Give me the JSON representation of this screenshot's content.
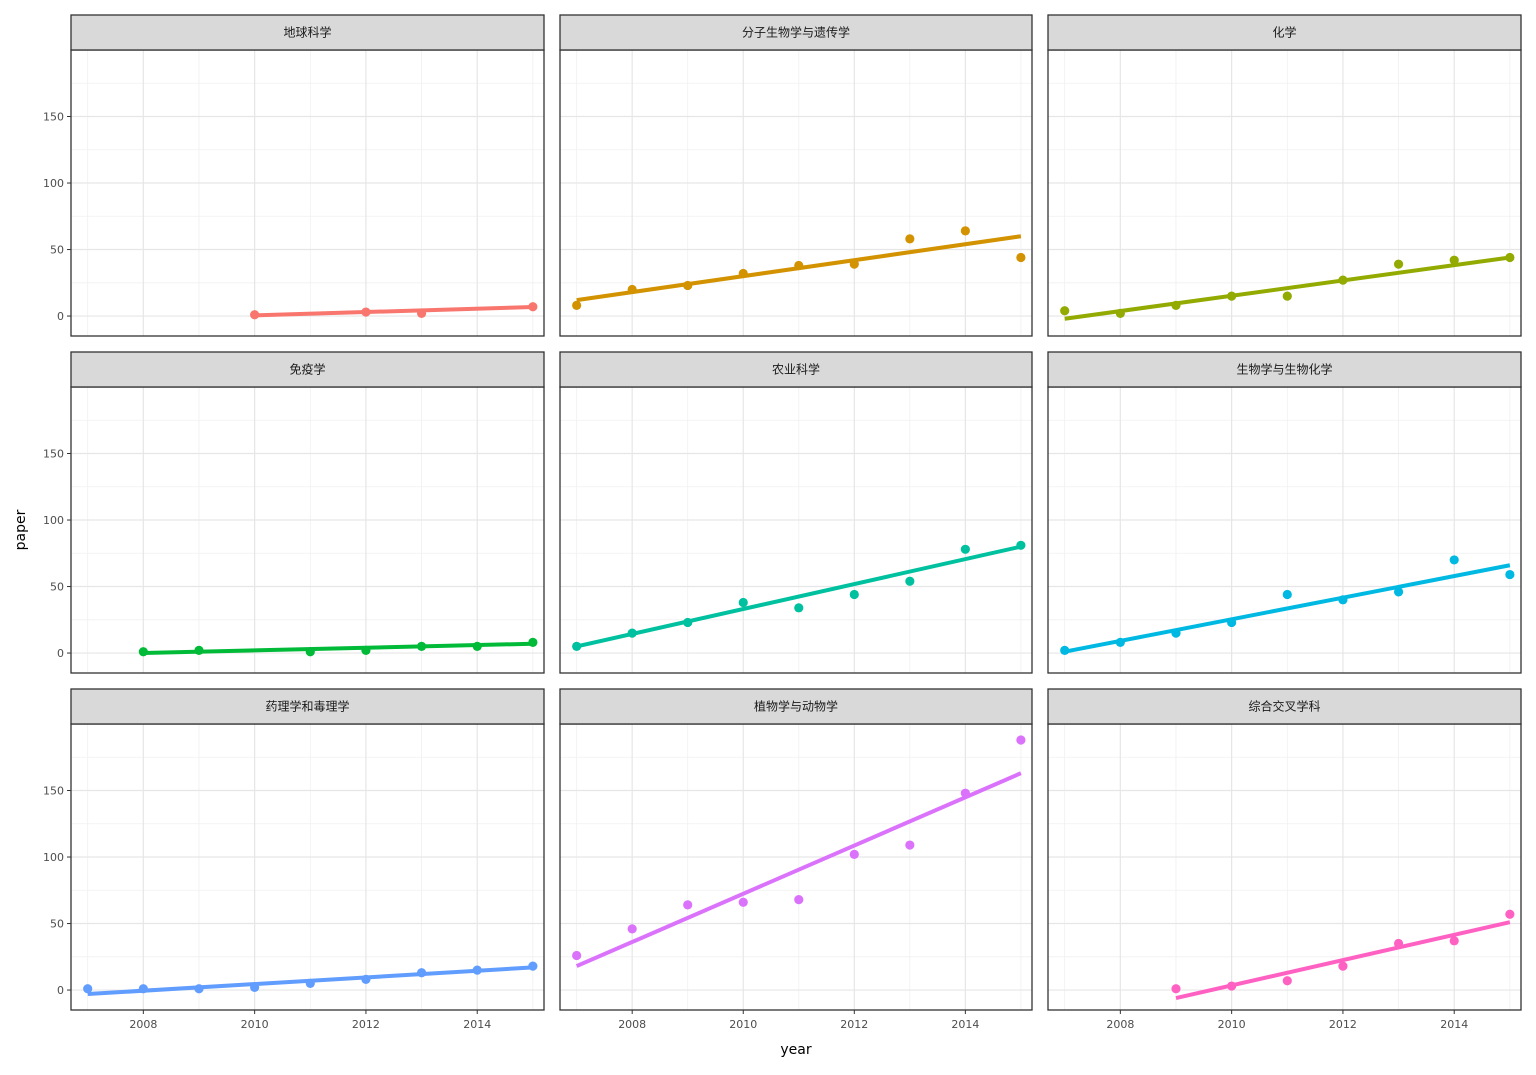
{
  "chart_data": {
    "type": "scatter",
    "xlabel": "year",
    "ylabel": "paper",
    "xlim": [
      2006.7,
      2015.2
    ],
    "ylim": [
      -15,
      200
    ],
    "x_ticks": [
      2008,
      2010,
      2012,
      2014
    ],
    "y_ticks": [
      0,
      50,
      100,
      150
    ],
    "grid": true,
    "legend": "none",
    "layout": "facet 3x3",
    "facets": [
      {
        "title": "地球科学",
        "color": "#F8766D",
        "points": [
          [
            2010,
            1
          ],
          [
            2012,
            3
          ],
          [
            2013,
            2
          ],
          [
            2015,
            7
          ]
        ],
        "fit": [
          [
            2010,
            0.5
          ],
          [
            2015,
            6.8
          ]
        ]
      },
      {
        "title": "分子生物学与遗传学",
        "color": "#D39200",
        "points": [
          [
            2007,
            8
          ],
          [
            2008,
            20
          ],
          [
            2009,
            23
          ],
          [
            2010,
            32
          ],
          [
            2011,
            38
          ],
          [
            2012,
            39
          ],
          [
            2013,
            58
          ],
          [
            2014,
            64
          ],
          [
            2015,
            44
          ]
        ],
        "fit": [
          [
            2007,
            12
          ],
          [
            2015,
            60
          ]
        ]
      },
      {
        "title": "化学",
        "color": "#93AA00",
        "points": [
          [
            2007,
            4
          ],
          [
            2008,
            2
          ],
          [
            2009,
            8
          ],
          [
            2010,
            15
          ],
          [
            2011,
            15
          ],
          [
            2012,
            27
          ],
          [
            2013,
            39
          ],
          [
            2014,
            42
          ],
          [
            2015,
            44
          ]
        ],
        "fit": [
          [
            2007,
            -2
          ],
          [
            2015,
            44
          ]
        ]
      },
      {
        "title": "免疫学",
        "color": "#00BA38",
        "points": [
          [
            2008,
            1
          ],
          [
            2009,
            2
          ],
          [
            2011,
            1
          ],
          [
            2012,
            2
          ],
          [
            2013,
            5
          ],
          [
            2014,
            5
          ],
          [
            2015,
            8
          ]
        ],
        "fit": [
          [
            2008,
            0
          ],
          [
            2015,
            7
          ]
        ]
      },
      {
        "title": "农业科学",
        "color": "#00C19F",
        "points": [
          [
            2007,
            5
          ],
          [
            2008,
            15
          ],
          [
            2009,
            23
          ],
          [
            2010,
            38
          ],
          [
            2011,
            34
          ],
          [
            2012,
            44
          ],
          [
            2013,
            54
          ],
          [
            2014,
            78
          ],
          [
            2015,
            81
          ]
        ],
        "fit": [
          [
            2007,
            5
          ],
          [
            2015,
            80
          ]
        ]
      },
      {
        "title": "生物学与生物化学",
        "color": "#00B9E3",
        "points": [
          [
            2007,
            2
          ],
          [
            2008,
            8
          ],
          [
            2009,
            15
          ],
          [
            2010,
            23
          ],
          [
            2011,
            44
          ],
          [
            2012,
            40
          ],
          [
            2013,
            46
          ],
          [
            2014,
            70
          ],
          [
            2015,
            59
          ]
        ],
        "fit": [
          [
            2007,
            1
          ],
          [
            2015,
            66
          ]
        ]
      },
      {
        "title": "药理学和毒理学",
        "color": "#619CFF",
        "points": [
          [
            2007,
            1
          ],
          [
            2008,
            1
          ],
          [
            2009,
            1
          ],
          [
            2010,
            2
          ],
          [
            2011,
            5
          ],
          [
            2012,
            8
          ],
          [
            2013,
            13
          ],
          [
            2014,
            15
          ],
          [
            2015,
            18
          ]
        ],
        "fit": [
          [
            2007,
            -3
          ],
          [
            2015,
            17
          ]
        ]
      },
      {
        "title": "植物学与动物学",
        "color": "#DB72FB",
        "points": [
          [
            2007,
            26
          ],
          [
            2008,
            46
          ],
          [
            2009,
            64
          ],
          [
            2010,
            66
          ],
          [
            2011,
            68
          ],
          [
            2012,
            102
          ],
          [
            2013,
            109
          ],
          [
            2014,
            148
          ],
          [
            2015,
            188
          ]
        ],
        "fit": [
          [
            2007,
            18
          ],
          [
            2015,
            163
          ]
        ]
      },
      {
        "title": "综合交叉学科",
        "color": "#FF61C3",
        "points": [
          [
            2009,
            1
          ],
          [
            2010,
            3
          ],
          [
            2011,
            7
          ],
          [
            2012,
            18
          ],
          [
            2013,
            35
          ],
          [
            2014,
            37
          ],
          [
            2015,
            57
          ]
        ],
        "fit": [
          [
            2009,
            -6
          ],
          [
            2015,
            51
          ]
        ]
      }
    ]
  }
}
